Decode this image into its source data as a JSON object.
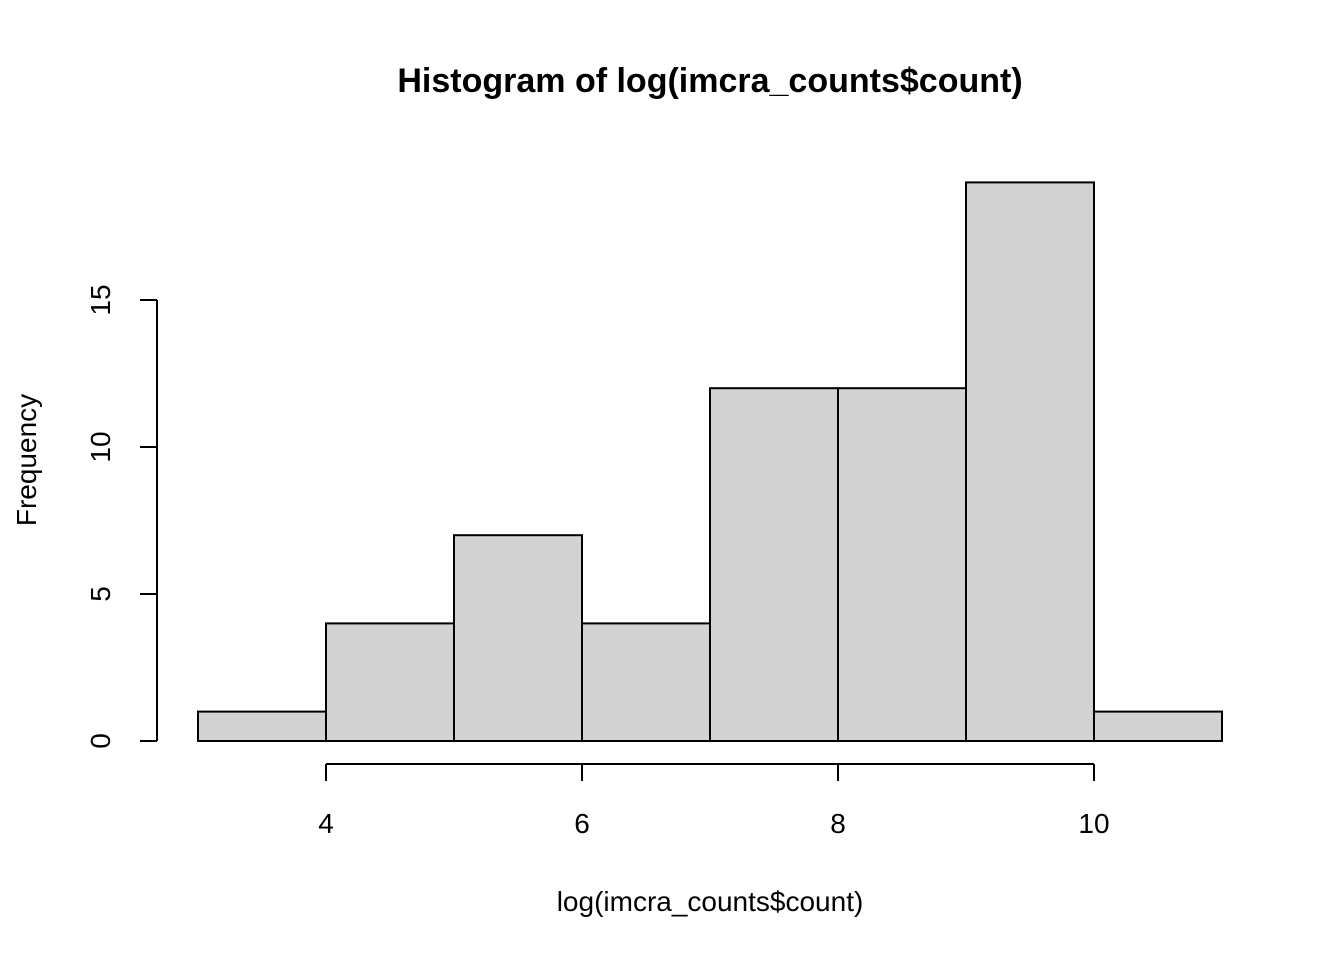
{
  "chart_data": {
    "type": "bar",
    "title": "Histogram of log(imcra_counts$count)",
    "xlabel": "log(imcra_counts$count)",
    "ylabel": "Frequency",
    "bins": [
      {
        "x0": 3,
        "x1": 4,
        "count": 1
      },
      {
        "x0": 4,
        "x1": 5,
        "count": 4
      },
      {
        "x0": 5,
        "x1": 6,
        "count": 7
      },
      {
        "x0": 6,
        "x1": 7,
        "count": 4
      },
      {
        "x0": 7,
        "x1": 8,
        "count": 12
      },
      {
        "x0": 8,
        "x1": 9,
        "count": 12
      },
      {
        "x0": 9,
        "x1": 10,
        "count": 19
      },
      {
        "x0": 10,
        "x1": 11,
        "count": 1
      }
    ],
    "x_ticks": [
      4,
      6,
      8,
      10
    ],
    "y_ticks": [
      0,
      5,
      10,
      15
    ],
    "xlim": [
      3,
      11
    ],
    "ylim": [
      0,
      19
    ],
    "grid": false,
    "bar_fill": "#d3d3d3",
    "bar_stroke": "#000000"
  }
}
